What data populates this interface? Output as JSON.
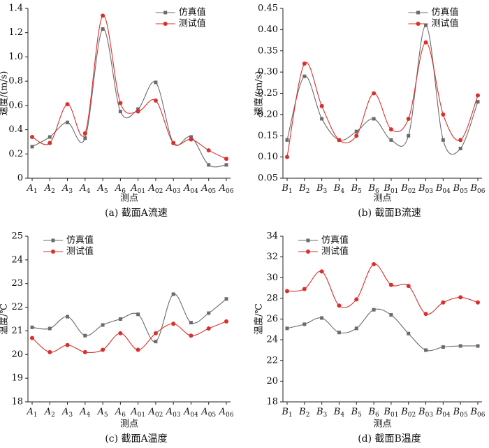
{
  "chart_data": [
    {
      "type": "line",
      "title": "(a) 截面A流速",
      "xlabel": "测点",
      "ylabel": "速度/(m/s)",
      "legend": "upper center",
      "categories": [
        "A1",
        "A2",
        "A3",
        "A4",
        "A5",
        "A6",
        "A01",
        "A02",
        "A03",
        "A04",
        "A05",
        "A06"
      ],
      "ylim": [
        0,
        1.4
      ],
      "yticks": [
        0,
        0.2,
        0.4,
        0.6,
        0.8,
        {
          "value": 1,
          "label": "1.0"
        },
        1.2,
        1.4
      ],
      "series": [
        {
          "name": "仿真值",
          "color": "#6b6b6b",
          "marker": "square",
          "values": [
            0.26,
            0.34,
            0.46,
            0.33,
            1.23,
            0.55,
            0.57,
            0.79,
            0.29,
            0.34,
            0.11,
            0.11
          ]
        },
        {
          "name": "测试值",
          "color": "#d9302c",
          "marker": "circle",
          "values": [
            0.34,
            0.29,
            0.61,
            0.37,
            1.34,
            0.62,
            0.55,
            0.64,
            0.29,
            0.32,
            0.23,
            0.16
          ]
        }
      ]
    },
    {
      "type": "line",
      "title": "(b) 截面B流速",
      "xlabel": "测点",
      "ylabel": "速度/(m/s)",
      "legend": "upper center",
      "categories": [
        "B1",
        "B2",
        "B3",
        "B4",
        "B5",
        "B6",
        "B01",
        "B02",
        "B03",
        "B04",
        "B05",
        "B06"
      ],
      "ylim": [
        0.05,
        0.45
      ],
      "yticks": [
        0.05,
        {
          "value": 0.1,
          "label": "0.10"
        },
        0.15,
        {
          "value": 0.2,
          "label": "0.20"
        },
        0.25,
        {
          "value": 0.3,
          "label": "0.30"
        },
        0.35,
        {
          "value": 0.4,
          "label": "0.40"
        },
        0.45
      ],
      "series": [
        {
          "name": "仿真值",
          "color": "#6b6b6b",
          "marker": "square",
          "values": [
            0.14,
            0.29,
            0.19,
            0.14,
            0.16,
            0.19,
            0.14,
            0.15,
            0.41,
            0.14,
            0.12,
            0.23
          ]
        },
        {
          "name": "测试值",
          "color": "#d9302c",
          "marker": "circle",
          "values": [
            0.1,
            0.32,
            0.22,
            0.14,
            0.15,
            0.25,
            0.165,
            0.19,
            0.37,
            0.2,
            0.14,
            0.245
          ]
        }
      ]
    },
    {
      "type": "line",
      "title": "(c) 截面A温度",
      "xlabel": "测点",
      "ylabel": "温度/℃",
      "legend": "upper left",
      "categories": [
        "A1",
        "A2",
        "A3",
        "A4",
        "A5",
        "A6",
        "A01",
        "A02",
        "A03",
        "A04",
        "A05",
        "A06"
      ],
      "ylim": [
        18,
        25
      ],
      "yticks": [
        18,
        19,
        20,
        21,
        22,
        23,
        24,
        25
      ],
      "series": [
        {
          "name": "仿真值",
          "color": "#6b6b6b",
          "marker": "square",
          "values": [
            21.15,
            21.1,
            21.6,
            20.8,
            21.25,
            21.5,
            21.7,
            20.55,
            22.55,
            21.35,
            21.75,
            22.35
          ]
        },
        {
          "name": "测试值",
          "color": "#d9302c",
          "marker": "circle",
          "values": [
            20.7,
            20.1,
            20.4,
            20.1,
            20.2,
            20.9,
            20.2,
            20.9,
            21.3,
            20.8,
            21.1,
            21.4
          ]
        }
      ]
    },
    {
      "type": "line",
      "title": "(d) 截面B温度",
      "xlabel": "测点",
      "ylabel": "温度/℃",
      "legend": "upper left",
      "categories": [
        "B1",
        "B2",
        "B3",
        "B4",
        "B5",
        "B6",
        "B01",
        "B02",
        "B03",
        "B04",
        "B05",
        "B06"
      ],
      "ylim": [
        18,
        34
      ],
      "yticks": [
        18,
        20,
        22,
        24,
        26,
        28,
        30,
        32,
        34
      ],
      "series": [
        {
          "name": "仿真值",
          "color": "#6b6b6b",
          "marker": "square",
          "values": [
            25.1,
            25.5,
            26.1,
            24.7,
            25.1,
            26.9,
            26.4,
            24.6,
            23.0,
            23.3,
            23.4,
            23.4
          ]
        },
        {
          "name": "测试值",
          "color": "#d9302c",
          "marker": "circle",
          "values": [
            28.7,
            28.9,
            30.6,
            27.3,
            27.9,
            31.3,
            29.3,
            29.2,
            26.5,
            27.6,
            28.1,
            27.6
          ]
        }
      ]
    }
  ]
}
